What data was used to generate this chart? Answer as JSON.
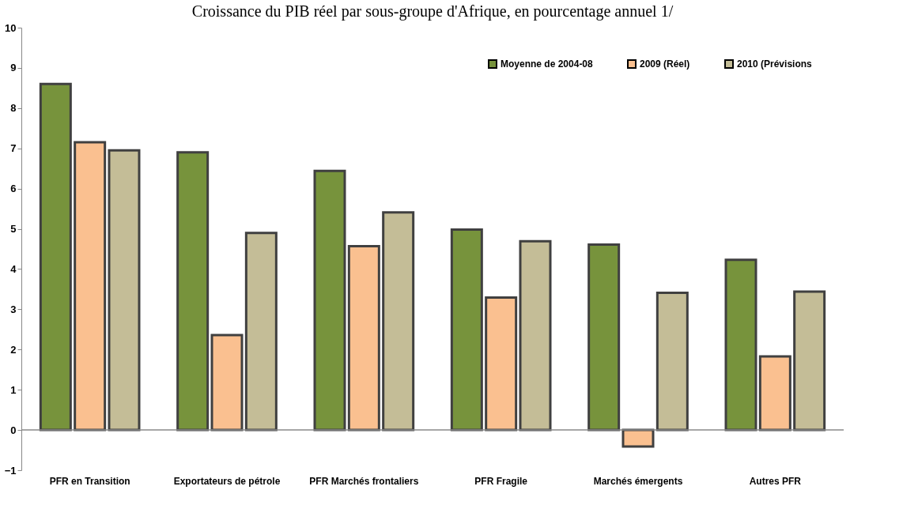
{
  "chart_data": {
    "type": "bar",
    "title": "Croissance du PIB réel par sous-groupe d'Afrique, en pourcentage annuel 1/",
    "categories": [
      "PFR en Transition",
      "Exportateurs de pétrole",
      "PFR Marchés frontaliers",
      "PFR Fragile",
      "Marchés émergents",
      "Autres PFR"
    ],
    "series": [
      {
        "name": "Moyenne de 2004-08",
        "color": "#77933c",
        "values": [
          8.6,
          6.9,
          6.44,
          4.98,
          4.61,
          4.23
        ]
      },
      {
        "name": "2009 (Réel)",
        "color": "#fac090",
        "values": [
          7.15,
          2.36,
          4.57,
          3.29,
          -0.41,
          1.83
        ]
      },
      {
        "name": "2010 (Prévisions",
        "color": "#c4bd97",
        "values": [
          6.95,
          4.9,
          5.41,
          4.69,
          3.41,
          3.44
        ]
      }
    ],
    "ylim": [
      -1,
      10
    ],
    "yticks": [
      -1,
      0,
      1,
      2,
      3,
      4,
      5,
      6,
      7,
      8,
      9,
      10
    ],
    "ref_lines": [
      {
        "axis": "y",
        "value": 0,
        "color": "#888888"
      }
    ],
    "grid": false,
    "legend": "top right"
  }
}
